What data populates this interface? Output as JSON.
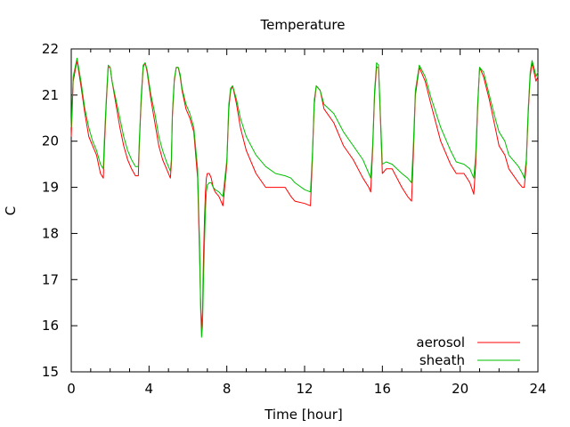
{
  "chart_data": {
    "type": "line",
    "title": "Temperature",
    "xlabel": "Time [hour]",
    "ylabel": "C",
    "xlim": [
      0,
      24
    ],
    "ylim": [
      15,
      22
    ],
    "xticks": [
      0,
      4,
      8,
      12,
      16,
      20,
      24
    ],
    "yticks": [
      15,
      16,
      17,
      18,
      19,
      20,
      21,
      22
    ],
    "legend_position": "bottom-right",
    "grid": false,
    "series": [
      {
        "name": "aerosol",
        "color": "#ff0000",
        "x": [
          0.0,
          0.1,
          0.3,
          0.5,
          0.7,
          0.9,
          1.1,
          1.3,
          1.5,
          1.65,
          1.7,
          1.8,
          1.9,
          2.0,
          2.1,
          2.3,
          2.5,
          2.7,
          2.9,
          3.1,
          3.3,
          3.45,
          3.5,
          3.6,
          3.7,
          3.8,
          3.9,
          4.1,
          4.3,
          4.5,
          4.7,
          4.9,
          5.1,
          5.15,
          5.2,
          5.3,
          5.4,
          5.5,
          5.6,
          5.7,
          5.9,
          6.1,
          6.3,
          6.5,
          6.6,
          6.65,
          6.7,
          6.75,
          6.8,
          6.85,
          6.9,
          6.95,
          7.0,
          7.1,
          7.2,
          7.3,
          7.4,
          7.6,
          7.8,
          8.0,
          8.1,
          8.2,
          8.3,
          8.5,
          8.7,
          9.0,
          9.5,
          10.0,
          10.5,
          11.0,
          11.3,
          11.5,
          12.0,
          12.3,
          12.4,
          12.5,
          12.6,
          12.8,
          13.0,
          13.5,
          14.0,
          14.5,
          15.0,
          15.3,
          15.4,
          15.5,
          15.6,
          15.7,
          15.8,
          15.9,
          16.0,
          16.2,
          16.5,
          17.0,
          17.3,
          17.5,
          17.6,
          17.7,
          17.9,
          18.2,
          18.5,
          19.0,
          19.5,
          19.8,
          20.2,
          20.5,
          20.7,
          20.8,
          20.9,
          21.0,
          21.2,
          21.5,
          21.8,
          22.0,
          22.3,
          22.5,
          23.0,
          23.2,
          23.3,
          23.4,
          23.5,
          23.6,
          23.7,
          23.8,
          23.9,
          24.0
        ],
        "y": [
          20.1,
          21.3,
          21.75,
          21.2,
          20.6,
          20.1,
          19.9,
          19.7,
          19.3,
          19.2,
          19.8,
          20.8,
          21.6,
          21.6,
          21.3,
          20.8,
          20.3,
          19.9,
          19.6,
          19.4,
          19.25,
          19.25,
          19.9,
          20.9,
          21.6,
          21.7,
          21.5,
          20.9,
          20.4,
          19.9,
          19.6,
          19.4,
          19.2,
          19.5,
          20.5,
          21.3,
          21.6,
          21.6,
          21.4,
          21.1,
          20.7,
          20.5,
          20.2,
          19.2,
          17.5,
          16.6,
          15.9,
          16.3,
          17.5,
          18.3,
          18.9,
          19.2,
          19.3,
          19.3,
          19.2,
          19.0,
          18.9,
          18.8,
          18.6,
          19.5,
          20.7,
          21.1,
          21.2,
          20.8,
          20.3,
          19.8,
          19.3,
          19.0,
          19.0,
          19.0,
          18.8,
          18.7,
          18.65,
          18.6,
          19.6,
          20.8,
          21.2,
          21.1,
          20.7,
          20.4,
          19.9,
          19.6,
          19.2,
          19.0,
          18.9,
          19.8,
          21.0,
          21.6,
          21.6,
          20.5,
          19.3,
          19.4,
          19.4,
          19.0,
          18.8,
          18.7,
          19.8,
          21.0,
          21.6,
          21.3,
          20.8,
          20.0,
          19.5,
          19.3,
          19.3,
          19.1,
          18.85,
          19.5,
          20.7,
          21.6,
          21.4,
          20.9,
          20.3,
          19.9,
          19.7,
          19.4,
          19.1,
          19.0,
          19.0,
          19.5,
          20.6,
          21.4,
          21.7,
          21.5,
          21.3,
          21.4
        ]
      },
      {
        "name": "sheath",
        "color": "#00c000",
        "x": [
          0.0,
          0.1,
          0.3,
          0.5,
          0.7,
          0.9,
          1.1,
          1.3,
          1.5,
          1.65,
          1.7,
          1.8,
          1.9,
          2.0,
          2.1,
          2.3,
          2.5,
          2.7,
          2.9,
          3.1,
          3.3,
          3.45,
          3.5,
          3.6,
          3.7,
          3.8,
          3.9,
          4.1,
          4.3,
          4.5,
          4.7,
          4.9,
          5.1,
          5.15,
          5.2,
          5.3,
          5.4,
          5.5,
          5.6,
          5.7,
          5.9,
          6.1,
          6.3,
          6.5,
          6.6,
          6.65,
          6.7,
          6.75,
          6.8,
          6.85,
          6.9,
          6.95,
          7.0,
          7.1,
          7.2,
          7.3,
          7.4,
          7.6,
          7.8,
          8.0,
          8.1,
          8.2,
          8.3,
          8.5,
          8.7,
          9.0,
          9.5,
          10.0,
          10.5,
          11.0,
          11.3,
          11.5,
          12.0,
          12.3,
          12.4,
          12.5,
          12.6,
          12.8,
          13.0,
          13.5,
          14.0,
          14.5,
          15.0,
          15.3,
          15.4,
          15.5,
          15.6,
          15.7,
          15.8,
          15.9,
          16.0,
          16.2,
          16.5,
          17.0,
          17.3,
          17.5,
          17.6,
          17.7,
          17.9,
          18.2,
          18.5,
          19.0,
          19.5,
          19.8,
          20.2,
          20.5,
          20.7,
          20.8,
          20.9,
          21.0,
          21.2,
          21.5,
          21.8,
          22.0,
          22.3,
          22.5,
          23.0,
          23.2,
          23.3,
          23.4,
          23.5,
          23.6,
          23.7,
          23.8,
          23.9,
          24.0
        ],
        "y": [
          20.3,
          21.4,
          21.8,
          21.3,
          20.7,
          20.3,
          20.0,
          19.8,
          19.5,
          19.4,
          20.0,
          20.9,
          21.65,
          21.6,
          21.3,
          20.9,
          20.5,
          20.1,
          19.8,
          19.6,
          19.45,
          19.45,
          20.0,
          21.0,
          21.65,
          21.7,
          21.55,
          21.0,
          20.6,
          20.1,
          19.8,
          19.55,
          19.35,
          19.6,
          20.6,
          21.35,
          21.6,
          21.6,
          21.45,
          21.15,
          20.8,
          20.6,
          20.3,
          19.4,
          17.8,
          16.4,
          15.75,
          16.0,
          17.0,
          17.8,
          18.5,
          18.9,
          19.05,
          19.1,
          19.1,
          19.0,
          18.95,
          18.9,
          18.8,
          19.6,
          20.8,
          21.15,
          21.2,
          20.9,
          20.5,
          20.1,
          19.7,
          19.45,
          19.3,
          19.25,
          19.2,
          19.1,
          18.95,
          18.9,
          19.7,
          20.9,
          21.2,
          21.1,
          20.8,
          20.6,
          20.2,
          19.9,
          19.6,
          19.3,
          19.2,
          19.9,
          21.1,
          21.7,
          21.65,
          20.6,
          19.5,
          19.55,
          19.5,
          19.3,
          19.2,
          19.1,
          20.0,
          21.1,
          21.65,
          21.4,
          20.95,
          20.3,
          19.8,
          19.55,
          19.5,
          19.4,
          19.2,
          19.7,
          20.8,
          21.6,
          21.5,
          21.0,
          20.5,
          20.2,
          20.0,
          19.7,
          19.45,
          19.3,
          19.2,
          19.6,
          20.7,
          21.5,
          21.75,
          21.6,
          21.4,
          21.5
        ]
      }
    ]
  }
}
